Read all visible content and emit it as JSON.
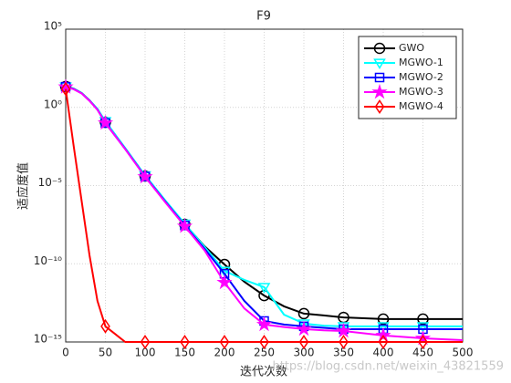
{
  "chart_data": {
    "type": "line",
    "title": "F9",
    "x_label": "迭代次数",
    "y_label": "适应度值",
    "watermark": "https://blog.csdn.net/weixin_43821559",
    "x": [
      0,
      10,
      20,
      30,
      40,
      50,
      75,
      100,
      125,
      150,
      175,
      200,
      225,
      250,
      275,
      300,
      325,
      350,
      400,
      450,
      500
    ],
    "series": [
      {
        "name": "GWO",
        "color": "#000000",
        "marker": "circle",
        "values": [
          21.4,
          15.8,
          8.3,
          2.8,
          0.74,
          0.112,
          0.0023,
          4.1e-05,
          1.1e-06,
          3.3e-08,
          1.3e-09,
          9.1e-11,
          7.1e-12,
          9.3e-13,
          1.9e-13,
          6.5e-14,
          5e-14,
          3.7e-14,
          2.9e-14,
          2.9e-14,
          2.9e-14
        ]
      },
      {
        "name": "MGWO-1",
        "color": "#00ffff",
        "marker": "triangle-down",
        "values": [
          21.4,
          15.8,
          8.3,
          2.8,
          0.8,
          0.13,
          0.0025,
          4.5e-05,
          1.2e-06,
          3.6e-08,
          1.2e-09,
          3.5e-11,
          9.3e-12,
          3.2e-12,
          5.6e-14,
          1.5e-14,
          1.1e-14,
          1e-14,
          1e-14,
          1e-14,
          1e-14
        ]
      },
      {
        "name": "MGWO-2",
        "color": "#0000ff",
        "marker": "square",
        "values": [
          21,
          15,
          8,
          2.7,
          0.72,
          0.1,
          0.0022,
          3.8e-05,
          1e-06,
          2.8e-08,
          9e-10,
          2.3e-11,
          4.2e-13,
          2.2e-14,
          1.3e-14,
          1e-14,
          8e-15,
          6.6e-15,
          6.6e-15,
          6.6e-15,
          6.6e-15
        ]
      },
      {
        "name": "MGWO-3",
        "color": "#ff00ff",
        "marker": "star",
        "values": [
          20,
          14.5,
          7.8,
          2.6,
          0.7,
          0.1,
          0.0021,
          3.6e-05,
          9e-07,
          2.5e-08,
          7e-10,
          6.3e-12,
          1.4e-13,
          1.3e-14,
          9e-15,
          6.6e-15,
          5.5e-15,
          5e-15,
          2.6e-15,
          1.7e-15,
          1.3e-15
        ]
      },
      {
        "name": "MGWO-4",
        "color": "#ff0000",
        "marker": "diamond",
        "values": [
          15,
          0.0035,
          1.1e-06,
          3.5e-10,
          4.2e-13,
          1e-14,
          1e-15,
          1e-15,
          1e-15,
          1e-15,
          1e-15,
          1e-15,
          1e-15,
          1e-15,
          1e-15,
          1e-15,
          1e-15,
          1e-15,
          1e-15,
          1e-15,
          1e-15
        ]
      }
    ],
    "marker_step": 50,
    "xlim": [
      0,
      500
    ],
    "xticks": [
      0,
      50,
      100,
      150,
      200,
      250,
      300,
      350,
      400,
      450,
      500
    ],
    "ylim": [
      1e-15,
      100000
    ],
    "yticks": [
      {
        "value": 1e-15,
        "label": "10⁻¹⁵"
      },
      {
        "value": 1e-10,
        "label": "10⁻¹⁰"
      },
      {
        "value": 1e-05,
        "label": "10⁻⁵"
      },
      {
        "value": 1,
        "label": "10⁰"
      },
      {
        "value": 100000,
        "label": "10⁵"
      }
    ],
    "y_scale": "log",
    "grid": true,
    "legend": "northeast"
  }
}
